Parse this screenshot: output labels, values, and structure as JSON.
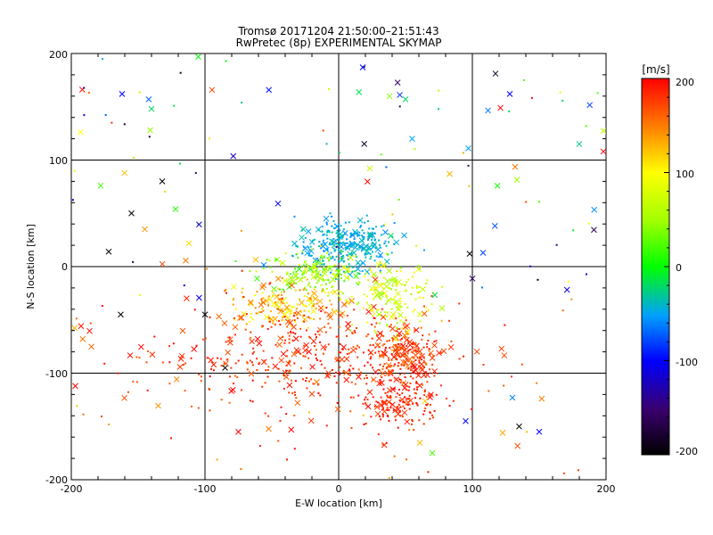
{
  "chart_data": {
    "type": "scatter",
    "title": "Tromsø 20171204 21:50:00–21:51:43",
    "subtitle": "RwPretec (8p) EXPERIMENTAL SKYMAP",
    "xlabel": "E-W location [km]",
    "ylabel": "N-S location [km]",
    "xlim": [
      -200,
      200
    ],
    "ylim": [
      -200,
      200
    ],
    "x_ticks": [
      "-200",
      "-100",
      "0",
      "100",
      "200"
    ],
    "y_ticks": [
      "-200",
      "-100",
      "0",
      "100",
      "200"
    ],
    "grid": true,
    "colorbar": {
      "unit": "[m/s]",
      "range": [
        -200,
        200
      ],
      "ticks": [
        "-200",
        "-100",
        "0",
        "100",
        "200"
      ]
    },
    "markers": "small dots and x crosses, colored by velocity",
    "clusters": [
      {
        "center": [
          5,
          20
        ],
        "spread": [
          18,
          12
        ],
        "velocity_range": [
          -60,
          -30
        ]
      },
      {
        "center": [
          -20,
          -5
        ],
        "spread": [
          20,
          10
        ],
        "velocity_range": [
          10,
          80
        ]
      },
      {
        "center": [
          -40,
          -35
        ],
        "spread": [
          20,
          10
        ],
        "velocity_range": [
          90,
          160
        ]
      },
      {
        "center": [
          -20,
          -85
        ],
        "spread": [
          55,
          25
        ],
        "velocity_range": [
          160,
          200
        ]
      },
      {
        "center": [
          50,
          -80
        ],
        "spread": [
          12,
          12
        ],
        "velocity_range": [
          150,
          200
        ]
      },
      {
        "center": [
          45,
          -125
        ],
        "spread": [
          15,
          15
        ],
        "velocity_range": [
          170,
          200
        ]
      },
      {
        "center": [
          40,
          -30
        ],
        "spread": [
          15,
          15
        ],
        "velocity_range": [
          40,
          110
        ]
      }
    ],
    "sample_points": [
      {
        "x": -162,
        "y": 162,
        "v": -100
      },
      {
        "x": -140,
        "y": 148,
        "v": -20
      },
      {
        "x": -105,
        "y": 197,
        "v": 0
      },
      {
        "x": -193,
        "y": 126,
        "v": 100
      },
      {
        "x": -178,
        "y": 76,
        "v": 20
      },
      {
        "x": -132,
        "y": 80,
        "v": -200
      },
      {
        "x": -122,
        "y": 54,
        "v": 10
      },
      {
        "x": -155,
        "y": 50,
        "v": -200
      },
      {
        "x": -172,
        "y": 14,
        "v": -200
      },
      {
        "x": -145,
        "y": 35,
        "v": 140
      },
      {
        "x": 18,
        "y": 187,
        "v": -100
      },
      {
        "x": 38,
        "y": 160,
        "v": 40
      },
      {
        "x": 50,
        "y": 157,
        "v": -20
      },
      {
        "x": 55,
        "y": 120,
        "v": -50
      },
      {
        "x": 97,
        "y": 111,
        "v": -50
      },
      {
        "x": 128,
        "y": 162,
        "v": -100
      },
      {
        "x": 121,
        "y": 149,
        "v": 200
      },
      {
        "x": 180,
        "y": 115,
        "v": -30
      },
      {
        "x": 198,
        "y": 108,
        "v": 200
      },
      {
        "x": 83,
        "y": 87,
        "v": 130
      },
      {
        "x": 108,
        "y": 13,
        "v": -80
      },
      {
        "x": 98,
        "y": 12,
        "v": -200
      },
      {
        "x": 135,
        "y": -150,
        "v": -200
      },
      {
        "x": 150,
        "y": -155,
        "v": -100
      },
      {
        "x": 130,
        "y": -123,
        "v": -60
      },
      {
        "x": 95,
        "y": -145,
        "v": -100
      },
      {
        "x": 70,
        "y": -175,
        "v": 20
      },
      {
        "x": -75,
        "y": -155,
        "v": 200
      },
      {
        "x": -85,
        "y": -95,
        "v": -200
      },
      {
        "x": -100,
        "y": -45,
        "v": -200
      },
      {
        "x": -163,
        "y": -45,
        "v": -200
      },
      {
        "x": -197,
        "y": -112,
        "v": 200
      }
    ]
  }
}
